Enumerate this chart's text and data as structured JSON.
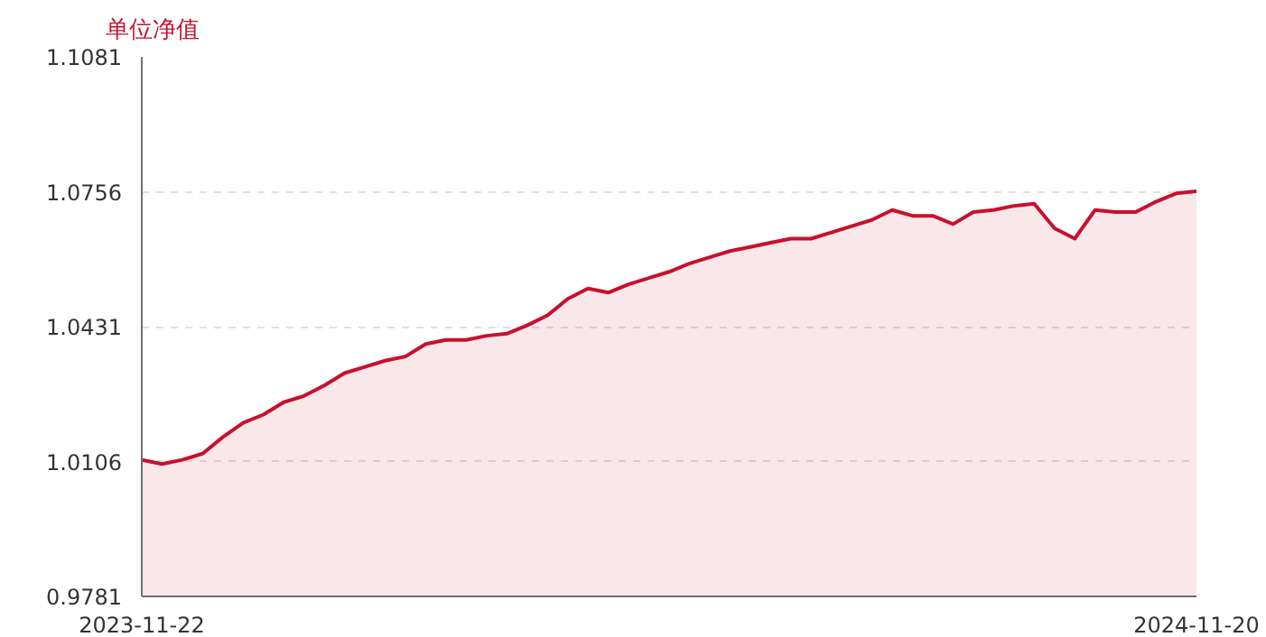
{
  "chart_data": {
    "type": "area",
    "title": "单位净值",
    "categories": [
      "2023-11-22",
      null,
      null,
      null,
      null,
      null,
      null,
      null,
      null,
      null,
      null,
      null,
      null,
      null,
      null,
      null,
      null,
      null,
      null,
      null,
      null,
      null,
      null,
      null,
      null,
      null,
      null,
      null,
      null,
      null,
      null,
      null,
      null,
      null,
      null,
      null,
      null,
      null,
      null,
      null,
      null,
      null,
      null,
      null,
      null,
      null,
      null,
      null,
      null,
      null,
      null,
      null,
      "2024-11-20"
    ],
    "series": [
      {
        "color": "#c8102e",
        "values": [
          1.011,
          1.01,
          1.011,
          1.0125,
          1.0165,
          1.0199,
          1.0219,
          1.0249,
          1.0264,
          1.0289,
          1.0319,
          1.0334,
          1.0349,
          1.0359,
          1.0389,
          1.0399,
          1.0399,
          1.0409,
          1.0414,
          1.0434,
          1.0458,
          1.0498,
          1.0523,
          1.0513,
          1.0533,
          1.0548,
          1.0563,
          1.0583,
          1.0598,
          1.0613,
          1.0623,
          1.0633,
          1.0643,
          1.0643,
          1.0658,
          1.0673,
          1.0688,
          1.0712,
          1.0698,
          1.0698,
          1.0678,
          1.0707,
          1.0712,
          1.0722,
          1.0727,
          1.0668,
          1.0643,
          1.0712,
          1.0707,
          1.0707,
          1.0732,
          1.0752,
          1.0757
        ]
      }
    ],
    "ylim": [
      0.9781,
      1.1081
    ],
    "yticks": [
      0.9781,
      1.0106,
      1.0431,
      1.0756,
      1.1081
    ],
    "grid": "y",
    "marker": "none"
  }
}
